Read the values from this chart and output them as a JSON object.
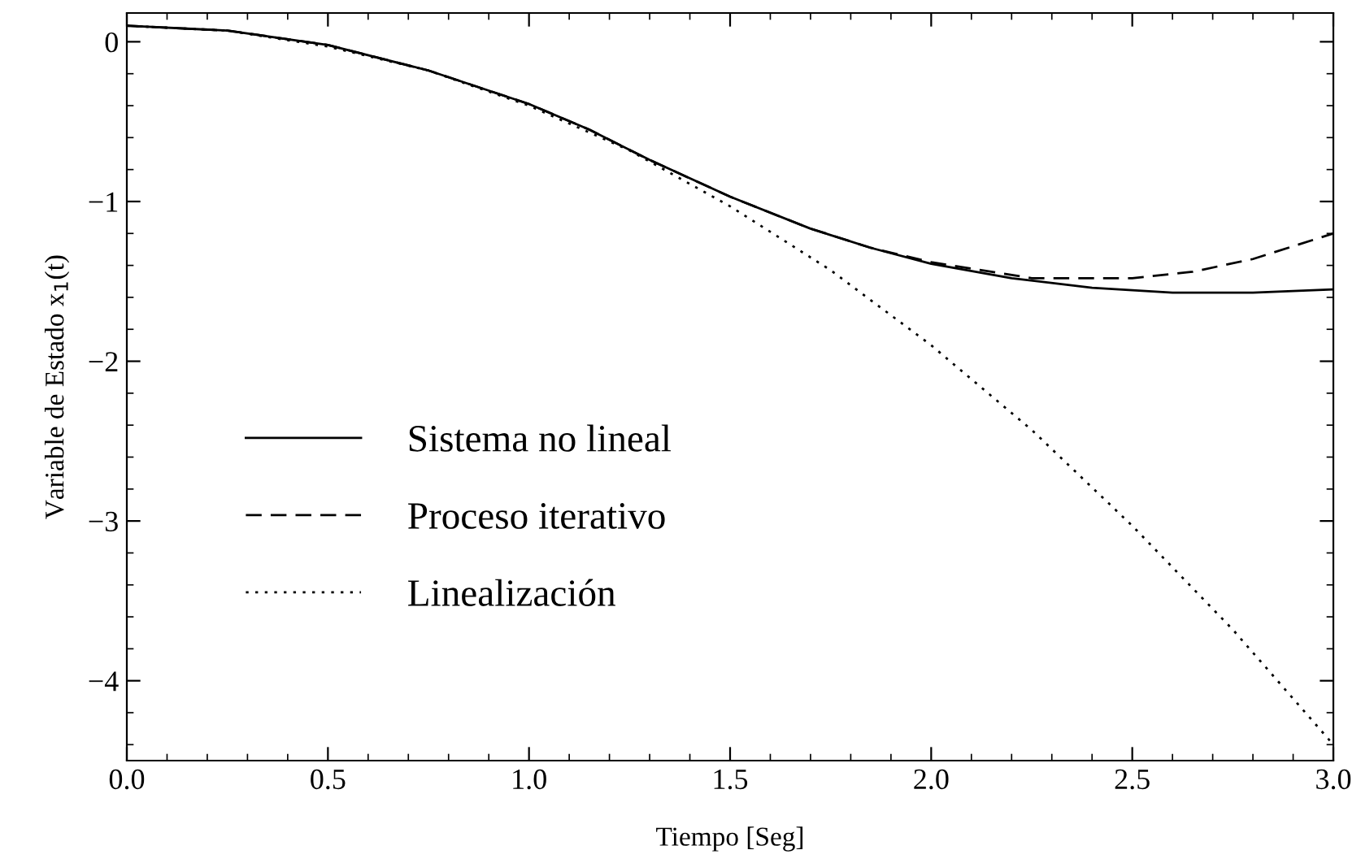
{
  "chart_data": {
    "type": "line",
    "xlabel": "Tiempo [Seg]",
    "ylabel": "Variable de Estado x$_{1}$(t)",
    "xlim": [
      0,
      3
    ],
    "ylim": [
      -4.5,
      0.18
    ],
    "xticks": [
      {
        "value": 0,
        "label": "0.0"
      },
      {
        "value": 0.5,
        "label": "0.5"
      },
      {
        "value": 1,
        "label": "1.0"
      },
      {
        "value": 1.5,
        "label": "1.5"
      },
      {
        "value": 2,
        "label": "2.0"
      },
      {
        "value": 2.5,
        "label": "2.5"
      },
      {
        "value": 3,
        "label": "3.0"
      }
    ],
    "yticks": [
      0,
      {
        "value": -1,
        "label": "−1"
      },
      {
        "value": -2,
        "label": "−2"
      },
      {
        "value": -3,
        "label": "−3"
      },
      {
        "value": -4,
        "label": "−4"
      }
    ],
    "grid": false,
    "legend": "bottom left",
    "marker": "none",
    "series": [
      {
        "name": "Sistema no lineal",
        "color": "#000000",
        "line_style": "solid",
        "x": [
          0,
          0.25,
          0.5,
          0.75,
          1.0,
          1.15,
          1.3,
          1.5,
          1.7,
          1.85,
          2.0,
          2.2,
          2.4,
          2.6,
          2.8,
          3.0
        ],
        "values": [
          0.1,
          0.07,
          -0.02,
          -0.18,
          -0.39,
          -0.55,
          -0.74,
          -0.97,
          -1.17,
          -1.29,
          -1.39,
          -1.48,
          -1.54,
          -1.57,
          -1.57,
          -1.55
        ]
      },
      {
        "name": "Proceso iterativo",
        "color": "#000000",
        "line_style": "dashed",
        "x": [
          0,
          0.25,
          0.5,
          0.75,
          1.0,
          1.15,
          1.3,
          1.5,
          1.7,
          1.85,
          2.0,
          2.25,
          2.5,
          2.65,
          2.8,
          3.0
        ],
        "values": [
          0.1,
          0.07,
          -0.02,
          -0.18,
          -0.39,
          -0.55,
          -0.74,
          -0.97,
          -1.17,
          -1.29,
          -1.38,
          -1.48,
          -1.48,
          -1.44,
          -1.36,
          -1.2
        ]
      },
      {
        "name": "Linealización",
        "color": "#000000",
        "line_style": "dotted",
        "x": [
          0,
          0.25,
          0.5,
          0.75,
          1.0,
          1.25,
          1.5,
          1.75,
          2.0,
          2.25,
          2.5,
          2.75,
          3.0
        ],
        "values": [
          0.1,
          0.07,
          -0.03,
          -0.18,
          -0.4,
          -0.68,
          -1.03,
          -1.43,
          -1.9,
          -2.43,
          -3.03,
          -3.68,
          -4.4
        ]
      }
    ]
  }
}
